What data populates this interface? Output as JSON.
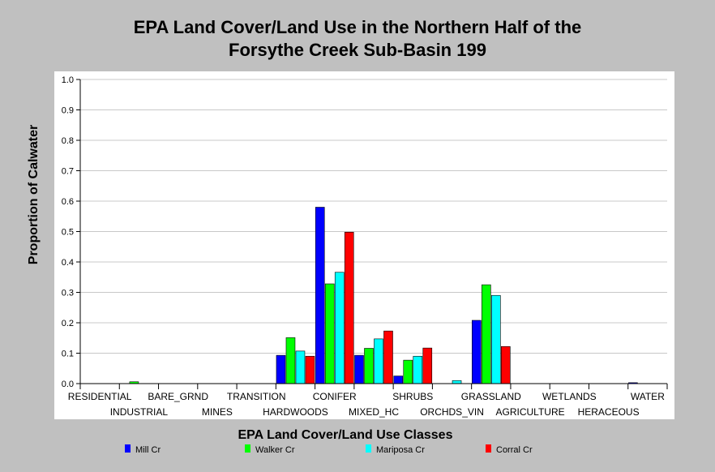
{
  "chart_data": {
    "type": "bar",
    "title_lines": [
      "EPA Land Cover/Land Use in the Northern Half of the",
      "Forsythe Creek Sub-Basin 199"
    ],
    "xlabel": "EPA Land Cover/Land Use Classes",
    "ylabel": "Proportion of Calwater",
    "ylim": [
      0,
      1.0
    ],
    "yticks": [
      "0.0",
      "0.1",
      "0.2",
      "0.3",
      "0.4",
      "0.5",
      "0.6",
      "0.7",
      "0.8",
      "0.9",
      "1.0"
    ],
    "grid": true,
    "legend_position": "bottom",
    "categories": [
      "RESIDENTIAL",
      "INDUSTRIAL",
      "BARE_GRND",
      "MINES",
      "TRANSITION",
      "HARDWOODS",
      "CONIFER",
      "MIXED_HC",
      "SHRUBS",
      "ORCHDS_VIN",
      "GRASSLAND",
      "AGRICULTURE",
      "WETLANDS",
      "HERACEOUS",
      "WATER"
    ],
    "series": [
      {
        "name": "Mill Cr",
        "color": "#0000ff",
        "values": [
          0,
          0,
          0,
          0,
          0,
          0.093,
          0.58,
          0.093,
          0.025,
          0,
          0.208,
          0,
          0,
          0,
          0.003
        ]
      },
      {
        "name": "Walker Cr",
        "color": "#00ff00",
        "values": [
          0,
          0.006,
          0,
          0,
          0,
          0.151,
          0.328,
          0.116,
          0.077,
          0,
          0.325,
          0,
          0,
          0,
          0
        ]
      },
      {
        "name": "Mariposa Cr",
        "color": "#00ffff",
        "values": [
          0,
          0,
          0,
          0,
          0,
          0.107,
          0.366,
          0.147,
          0.09,
          0.01,
          0.29,
          0,
          0,
          0,
          0
        ]
      },
      {
        "name": "Corral Cr",
        "color": "#ff0000",
        "values": [
          0,
          0,
          0,
          0,
          0,
          0.09,
          0.498,
          0.173,
          0.117,
          0,
          0.122,
          0,
          0,
          0,
          0
        ]
      }
    ]
  }
}
